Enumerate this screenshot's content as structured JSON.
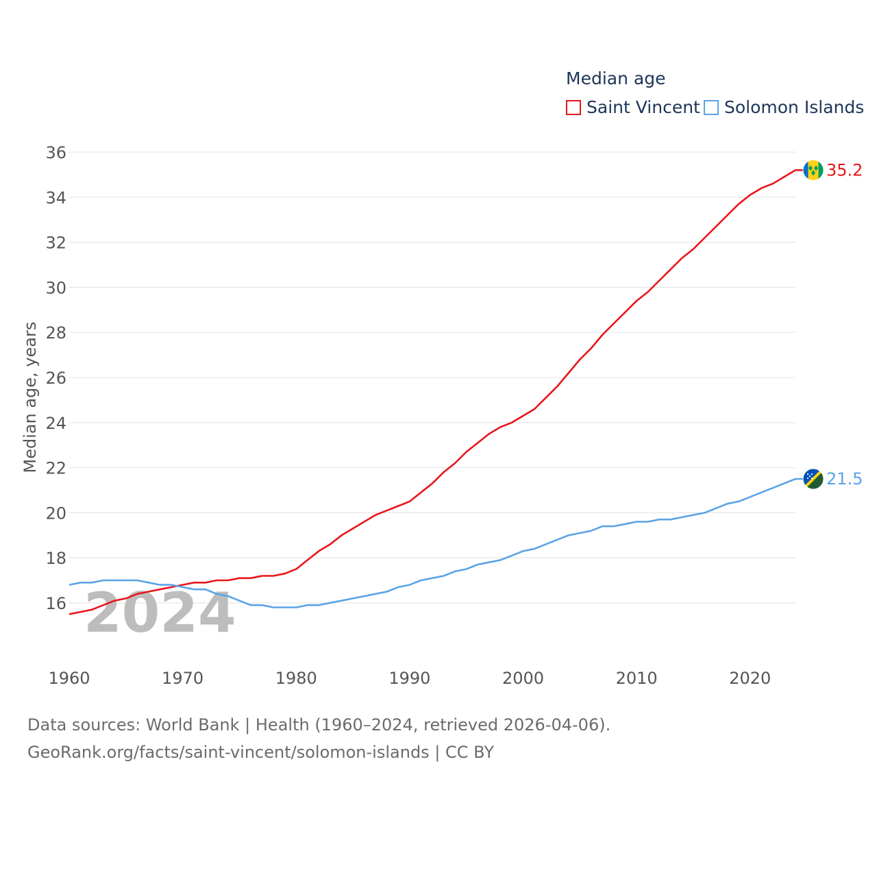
{
  "legend": {
    "title": "Median age",
    "items": [
      "Saint Vincent",
      "Solomon Islands"
    ]
  },
  "footer": {
    "line1": "Data sources: World Bank | Health (1960–2024, retrieved 2026-04-06).",
    "line2": "GeoRank.org/facts/saint-vincent/solomon-islands | CC BY"
  },
  "colors": {
    "saint_vincent": "#e8151b",
    "solomon_islands": "#5aa3e6",
    "grid": "#e6e6e6",
    "tick": "#555555",
    "year_watermark": "#bdbdbd"
  },
  "chart_data": {
    "type": "line",
    "title": "Median age",
    "ylabel": "Median age, years",
    "xlabel": "",
    "year_label": "2024",
    "xlim": [
      1960,
      2024
    ],
    "ylim": [
      14.6,
      36
    ],
    "x_ticks": [
      1960,
      1970,
      1980,
      1990,
      2000,
      2010,
      2020
    ],
    "y_ticks": [
      16,
      18,
      20,
      22,
      24,
      26,
      28,
      30,
      32,
      34,
      36
    ],
    "x": [
      1960,
      1961,
      1962,
      1963,
      1964,
      1965,
      1966,
      1967,
      1968,
      1969,
      1970,
      1971,
      1972,
      1973,
      1974,
      1975,
      1976,
      1977,
      1978,
      1979,
      1980,
      1981,
      1982,
      1983,
      1984,
      1985,
      1986,
      1987,
      1988,
      1989,
      1990,
      1991,
      1992,
      1993,
      1994,
      1995,
      1996,
      1997,
      1998,
      1999,
      2000,
      2001,
      2002,
      2003,
      2004,
      2005,
      2006,
      2007,
      2008,
      2009,
      2010,
      2011,
      2012,
      2013,
      2014,
      2015,
      2016,
      2017,
      2018,
      2019,
      2020,
      2021,
      2022,
      2023,
      2024
    ],
    "series": [
      {
        "name": "Saint Vincent",
        "color": "#e8151b",
        "end_label": "35.2",
        "flag": "saint-vincent-flag-icon",
        "values": [
          15.5,
          15.6,
          15.7,
          15.9,
          16.1,
          16.2,
          16.4,
          16.5,
          16.6,
          16.7,
          16.8,
          16.9,
          16.9,
          17.0,
          17.0,
          17.1,
          17.1,
          17.2,
          17.2,
          17.3,
          17.5,
          17.9,
          18.3,
          18.6,
          19.0,
          19.3,
          19.6,
          19.9,
          20.1,
          20.3,
          20.5,
          20.9,
          21.3,
          21.8,
          22.2,
          22.7,
          23.1,
          23.5,
          23.8,
          24.0,
          24.3,
          24.6,
          25.1,
          25.6,
          26.2,
          26.8,
          27.3,
          27.9,
          28.4,
          28.9,
          29.4,
          29.8,
          30.3,
          30.8,
          31.3,
          31.7,
          32.2,
          32.7,
          33.2,
          33.7,
          34.1,
          34.4,
          34.6,
          34.9,
          35.2
        ]
      },
      {
        "name": "Solomon Islands",
        "color": "#5aa3e6",
        "end_label": "21.5",
        "flag": "solomon-islands-flag-icon",
        "values": [
          16.8,
          16.9,
          16.9,
          17.0,
          17.0,
          17.0,
          17.0,
          16.9,
          16.8,
          16.8,
          16.7,
          16.6,
          16.6,
          16.4,
          16.3,
          16.1,
          15.9,
          15.9,
          15.8,
          15.8,
          15.8,
          15.9,
          15.9,
          16.0,
          16.1,
          16.2,
          16.3,
          16.4,
          16.5,
          16.7,
          16.8,
          17.0,
          17.1,
          17.2,
          17.4,
          17.5,
          17.7,
          17.8,
          17.9,
          18.1,
          18.3,
          18.4,
          18.6,
          18.8,
          19.0,
          19.1,
          19.2,
          19.4,
          19.4,
          19.5,
          19.6,
          19.6,
          19.7,
          19.7,
          19.8,
          19.9,
          20.0,
          20.2,
          20.4,
          20.5,
          20.7,
          20.9,
          21.1,
          21.3,
          21.5
        ]
      }
    ]
  }
}
